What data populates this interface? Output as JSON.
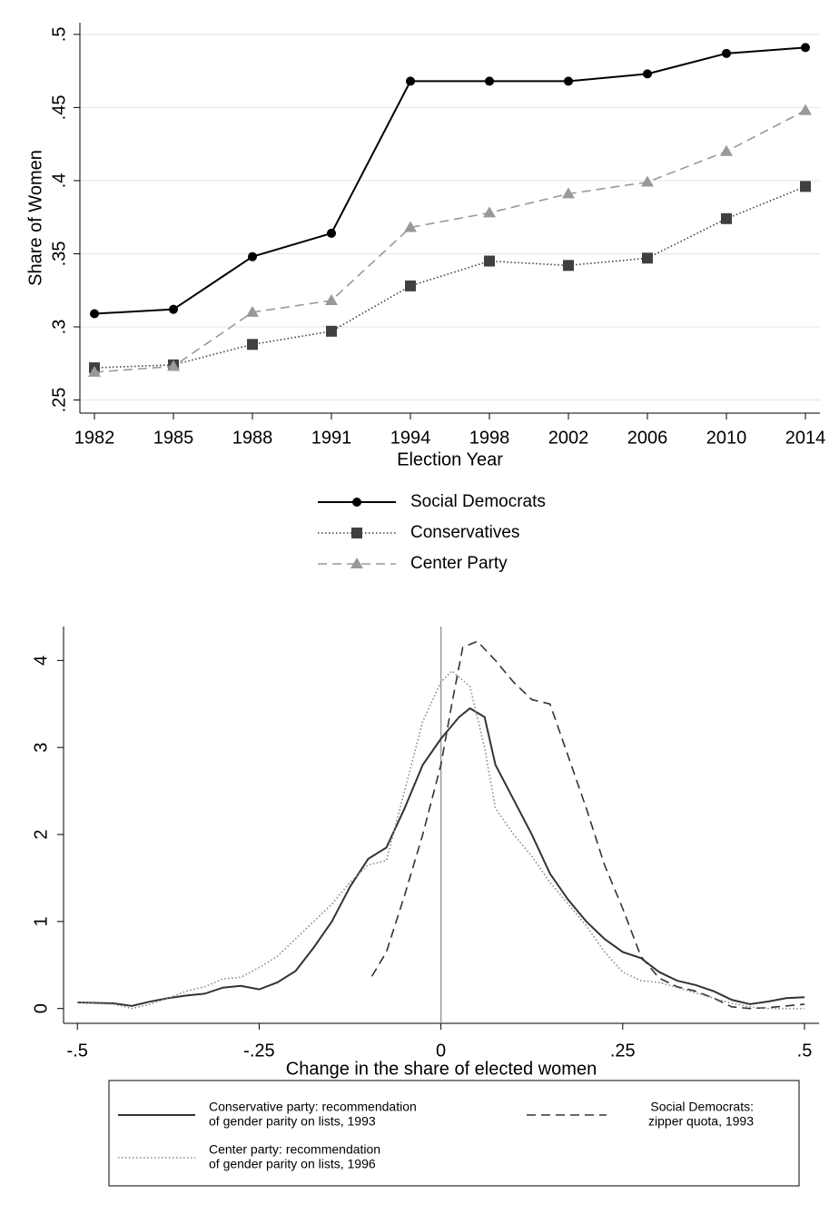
{
  "chart_data": [
    {
      "type": "line",
      "y_label": "Share of Women",
      "x_label": "Election Year",
      "categories": [
        "1982",
        "1985",
        "1988",
        "1991",
        "1994",
        "1998",
        "2002",
        "2006",
        "2010",
        "2014"
      ],
      "ylim": [
        0.241,
        0.508
      ],
      "yticks": [
        {
          "value": 0.25,
          "label": ".25"
        },
        {
          "value": 0.3,
          "label": ".3"
        },
        {
          "value": 0.35,
          "label": ".35"
        },
        {
          "value": 0.4,
          "label": ".4"
        },
        {
          "value": 0.45,
          "label": ".45"
        },
        {
          "value": 0.5,
          "label": ".5"
        }
      ],
      "grid": true,
      "series": [
        {
          "name": [
            "Social Democrats"
          ],
          "color": "#000000",
          "line_style": "solid",
          "marker": "circle",
          "values": [
            0.309,
            0.312,
            0.348,
            0.364,
            0.468,
            0.468,
            0.468,
            0.473,
            0.487,
            0.491
          ]
        },
        {
          "name": [
            "Conservatives"
          ],
          "color": "#404040",
          "line_style": "dotted",
          "marker": "square",
          "values": [
            0.272,
            0.274,
            0.288,
            0.297,
            0.328,
            0.345,
            0.342,
            0.347,
            0.374,
            0.396
          ]
        },
        {
          "name": [
            "Center Party"
          ],
          "color": "#999999",
          "line_style": "dashed",
          "marker": "triangle",
          "values": [
            0.269,
            0.273,
            0.31,
            0.318,
            0.368,
            0.378,
            0.391,
            0.399,
            0.42,
            0.448
          ]
        }
      ]
    },
    {
      "type": "line",
      "x_label": "Change in the share of elected women",
      "xlim": [
        -0.519,
        0.52
      ],
      "ylim": [
        -0.17,
        4.39
      ],
      "xticks": [
        {
          "value": -0.5,
          "label": "-.5"
        },
        {
          "value": -0.25,
          "label": "-.25"
        },
        0,
        {
          "value": 0.25,
          "label": ".25"
        },
        {
          "value": 0.5,
          "label": ".5"
        }
      ],
      "yticks": [
        0,
        1,
        2,
        3,
        4
      ],
      "grid": false,
      "vline": 0,
      "series": [
        {
          "name": [
            "Conservative party: recommendation",
            "of gender parity on lists, 1993"
          ],
          "color": "#333333",
          "line_style": "solid",
          "x": [
            -0.5,
            -0.45,
            -0.425,
            -0.4,
            -0.375,
            -0.35,
            -0.325,
            -0.3,
            -0.275,
            -0.25,
            -0.225,
            -0.2,
            -0.175,
            -0.15,
            -0.125,
            -0.1,
            -0.075,
            -0.05,
            -0.025,
            0,
            0.025,
            0.04,
            0.06,
            0.075,
            0.1,
            0.125,
            0.15,
            0.175,
            0.2,
            0.225,
            0.25,
            0.275,
            0.3,
            0.325,
            0.35,
            0.375,
            0.4,
            0.425,
            0.45,
            0.475,
            0.5
          ],
          "values": [
            0.07,
            0.06,
            0.03,
            0.08,
            0.12,
            0.15,
            0.17,
            0.24,
            0.26,
            0.22,
            0.3,
            0.43,
            0.7,
            1.0,
            1.4,
            1.72,
            1.85,
            2.3,
            2.8,
            3.1,
            3.35,
            3.45,
            3.35,
            2.8,
            2.4,
            2.0,
            1.55,
            1.25,
            1.0,
            0.8,
            0.65,
            0.58,
            0.42,
            0.32,
            0.27,
            0.2,
            0.1,
            0.05,
            0.08,
            0.12,
            0.13
          ]
        },
        {
          "name": [
            "Social Democrats:",
            "zipper quota, 1993"
          ],
          "color": "#333333",
          "line_style": "dashed",
          "x": [
            -0.095,
            -0.075,
            -0.05,
            -0.025,
            0,
            0.015,
            0.03,
            0.05,
            0.075,
            0.1,
            0.125,
            0.15,
            0.175,
            0.2,
            0.225,
            0.25,
            0.275,
            0.3,
            0.325,
            0.35,
            0.375,
            0.4,
            0.425,
            0.45,
            0.5
          ],
          "values": [
            0.37,
            0.65,
            1.3,
            2.0,
            2.8,
            3.5,
            4.15,
            4.22,
            4.0,
            3.75,
            3.55,
            3.5,
            2.9,
            2.3,
            1.65,
            1.15,
            0.6,
            0.35,
            0.25,
            0.2,
            0.12,
            0.02,
            0.0,
            0.01,
            0.05
          ]
        },
        {
          "name": [
            "Center party: recommendation",
            "of gender parity on lists, 1996"
          ],
          "color": "#888888",
          "line_style": "dotted",
          "x": [
            -0.5,
            -0.45,
            -0.425,
            -0.4,
            -0.375,
            -0.35,
            -0.325,
            -0.3,
            -0.275,
            -0.25,
            -0.225,
            -0.2,
            -0.175,
            -0.15,
            -0.125,
            -0.1,
            -0.075,
            -0.05,
            -0.025,
            0,
            0.015,
            0.04,
            0.06,
            0.075,
            0.1,
            0.125,
            0.15,
            0.175,
            0.2,
            0.225,
            0.25,
            0.275,
            0.3,
            0.325,
            0.35,
            0.375,
            0.4,
            0.425,
            0.45,
            0.5
          ],
          "values": [
            0.07,
            0.05,
            0.0,
            0.05,
            0.12,
            0.2,
            0.25,
            0.34,
            0.36,
            0.47,
            0.6,
            0.8,
            1.0,
            1.2,
            1.45,
            1.65,
            1.7,
            2.5,
            3.3,
            3.75,
            3.88,
            3.7,
            3.0,
            2.3,
            2.0,
            1.75,
            1.45,
            1.2,
            0.95,
            0.65,
            0.42,
            0.32,
            0.3,
            0.24,
            0.18,
            0.12,
            0.06,
            0.02,
            0.0,
            0.0
          ]
        }
      ]
    }
  ]
}
